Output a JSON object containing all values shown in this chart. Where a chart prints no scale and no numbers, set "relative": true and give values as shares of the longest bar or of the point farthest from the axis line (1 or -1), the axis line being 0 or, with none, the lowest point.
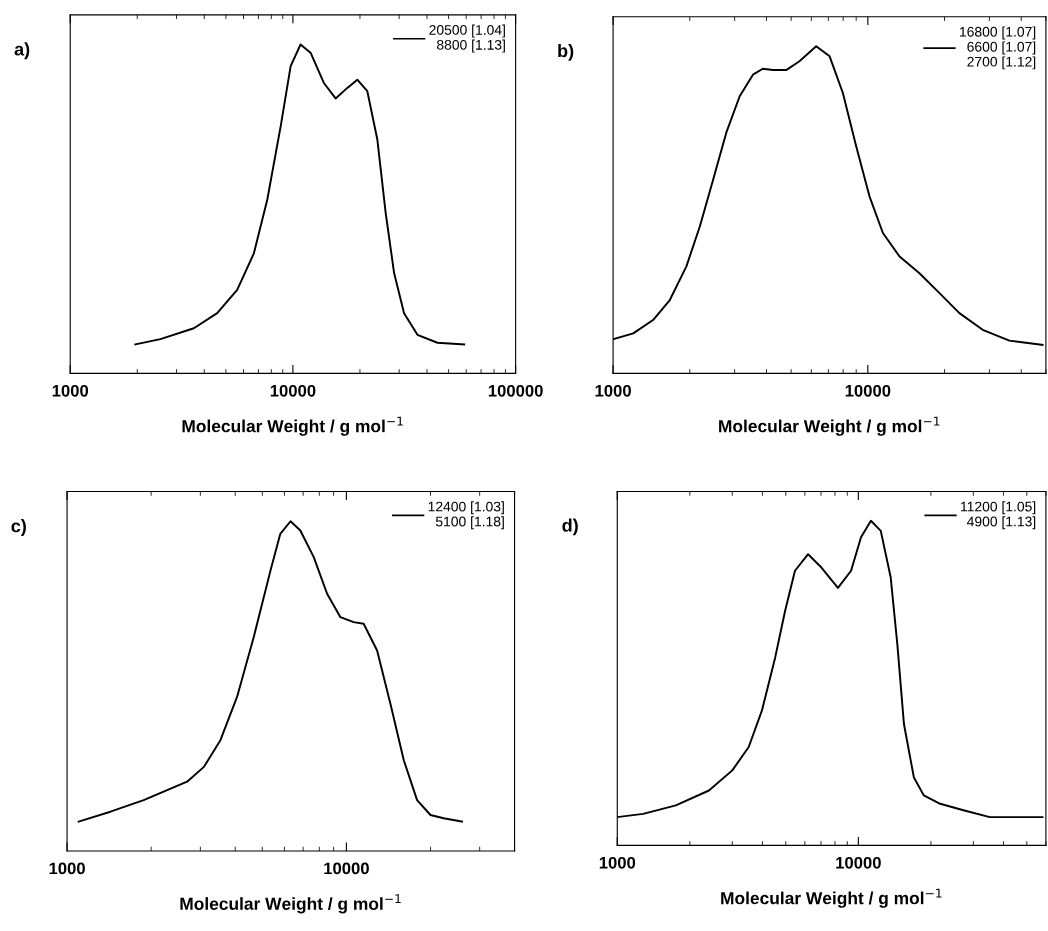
{
  "chart_data": [
    {
      "type": "line",
      "title": "a)",
      "xlabel": "Molecular Weight / g mol$^{−1}$",
      "log": "x",
      "relative": true,
      "tick_labels": "x",
      "legend": "top right",
      "xlim": [
        1000,
        100000
      ],
      "xticks": [
        1000,
        10000,
        100000
      ],
      "series": [
        {
          "name": "20500 [1.04]\n8800 [1.13]",
          "color": "#000000",
          "x": [
            1960,
            2540,
            3590,
            4570,
            5620,
            6680,
            7670,
            8810,
            9770,
            10820,
            12000,
            13770,
            15550,
            17550,
            19460,
            21580,
            23940,
            26100,
            28470,
            31560,
            36250,
            44560,
            58750
          ],
          "values": [
            0.088,
            0.104,
            0.137,
            0.183,
            0.254,
            0.365,
            0.528,
            0.751,
            0.934,
            1,
            0.975,
            0.883,
            0.836,
            0.868,
            0.893,
            0.858,
            0.711,
            0.487,
            0.305,
            0.183,
            0.117,
            0.093,
            0.088
          ]
        }
      ]
    },
    {
      "type": "line",
      "title": "b)",
      "xlabel": "Molecular Weight / g mol$^{−1}$",
      "log": "x",
      "relative": true,
      "tick_labels": "x",
      "legend": "top right",
      "xlim": [
        1000,
        50000
      ],
      "xticks": [
        1000,
        10000
      ],
      "series": [
        {
          "name": "16800 [1.07]\n6600 [1.07]\n2700 [1.12]",
          "color": "#000000",
          "x": [
            1000,
            1200,
            1435,
            1670,
            1940,
            2190,
            2470,
            2780,
            3140,
            3540,
            3870,
            4240,
            4780,
            5390,
            6270,
            7080,
            7980,
            9000,
            10150,
            11460,
            13320,
            15950,
            19110,
            22880,
            28240,
            35950,
            48530
          ],
          "values": [
            0.104,
            0.122,
            0.163,
            0.224,
            0.327,
            0.449,
            0.592,
            0.735,
            0.847,
            0.913,
            0.931,
            0.927,
            0.927,
            0.954,
            1,
            0.969,
            0.857,
            0.694,
            0.541,
            0.429,
            0.357,
            0.306,
            0.245,
            0.184,
            0.133,
            0.1,
            0.087
          ]
        }
      ]
    },
    {
      "type": "line",
      "title": "c)",
      "xlabel": "Molecular Weight / g mol$^{−1}$",
      "log": "x",
      "relative": true,
      "tick_labels": "x",
      "legend": "top right",
      "xlim": [
        1000,
        40000
      ],
      "xticks": [
        1000,
        10000
      ],
      "series": [
        {
          "name": "12400 [1.03]\n5100 [1.18]",
          "color": "#000000",
          "x": [
            1100,
            1430,
            1880,
            2690,
            3090,
            3540,
            4060,
            4660,
            5350,
            5800,
            6310,
            6840,
            7640,
            8530,
            9520,
            10620,
            11530,
            12880,
            14380,
            16050,
            17910,
            20000,
            22300,
            25930
          ],
          "values": [
            0.089,
            0.119,
            0.154,
            0.21,
            0.255,
            0.336,
            0.467,
            0.649,
            0.851,
            0.962,
            1,
            0.972,
            0.891,
            0.78,
            0.709,
            0.694,
            0.689,
            0.608,
            0.446,
            0.275,
            0.154,
            0.109,
            0.099,
            0.089
          ]
        }
      ]
    },
    {
      "type": "line",
      "title": "d)",
      "xlabel": "Molecular Weight / g mol$^{−1}$",
      "log": "x",
      "relative": true,
      "tick_labels": "x",
      "legend": "top right",
      "xlim": [
        1000,
        60000
      ],
      "xticks": [
        1000,
        10000
      ],
      "series": [
        {
          "name": "11200 [1.05]\n4900 [1.13]",
          "color": "#000000",
          "x": [
            1000,
            1280,
            1750,
            2400,
            3000,
            3510,
            3980,
            4520,
            4970,
            5460,
            6190,
            7030,
            8230,
            9330,
            10260,
            11280,
            12390,
            13620,
            14510,
            15460,
            16990,
            18680,
            21860,
            27290,
            35110,
            58070
          ],
          "values": [
            0.087,
            0.097,
            0.123,
            0.169,
            0.231,
            0.303,
            0.415,
            0.579,
            0.723,
            0.846,
            0.897,
            0.856,
            0.793,
            0.846,
            0.949,
            1,
            0.969,
            0.826,
            0.621,
            0.374,
            0.21,
            0.154,
            0.128,
            0.108,
            0.087,
            0.087
          ]
        }
      ]
    }
  ]
}
